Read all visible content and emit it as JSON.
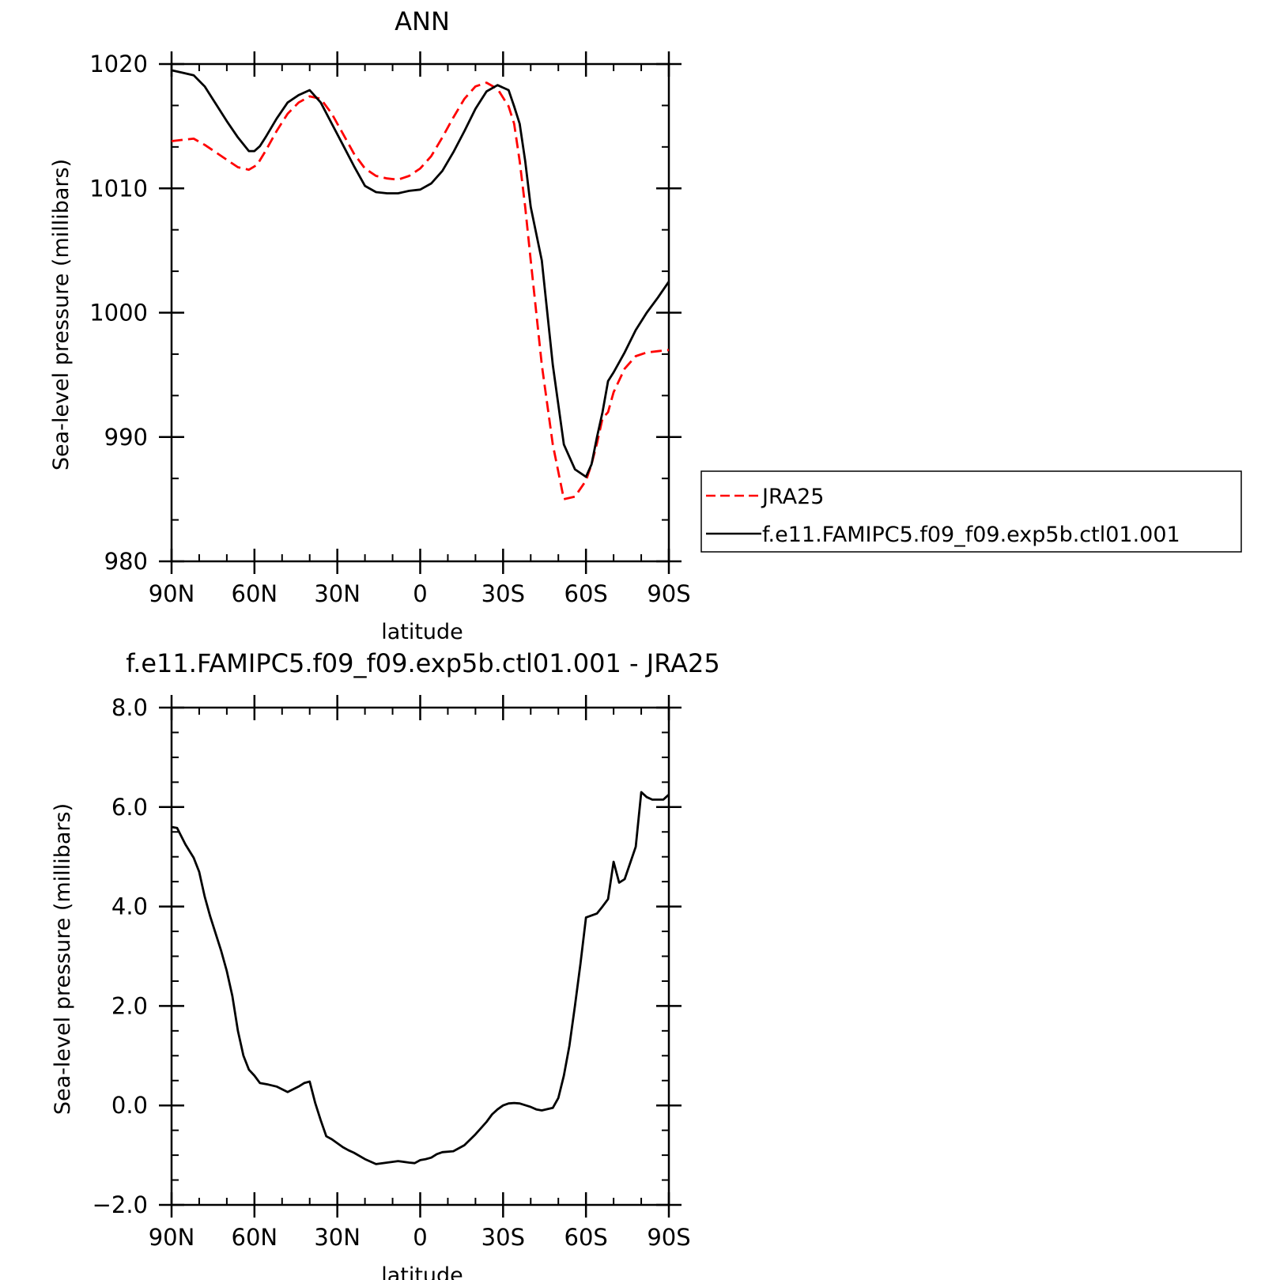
{
  "chart_data": [
    {
      "type": "line",
      "title": "ANN",
      "xlabel": "latitude",
      "ylabel": "Sea-level pressure (millibars)",
      "xlim": [
        90,
        -90
      ],
      "ylim": [
        980,
        1020
      ],
      "xtick_labels": [
        "90N",
        "60N",
        "30N",
        "0",
        "30S",
        "60S",
        "90S"
      ],
      "ytick_labels": [
        "980",
        "990",
        "1000",
        "1010",
        "1020"
      ],
      "legend": {
        "placement": "right",
        "entries": [
          "JRA25",
          "f.e11.FAMIPC5.f09_f09.exp5b.ctl01.001"
        ]
      },
      "series": [
        {
          "name": "JRA25",
          "style": "dashed",
          "color": "#ff0000",
          "x": [
            90,
            86,
            82,
            78,
            74,
            70,
            66,
            62,
            59,
            56,
            52,
            48,
            44,
            40,
            36,
            32,
            28,
            24,
            20,
            16,
            12,
            8,
            4,
            0,
            -4,
            -8,
            -12,
            -16,
            -20,
            -24,
            -28,
            -32,
            -34,
            -36,
            -38,
            -40,
            -44,
            -48,
            -52,
            -56,
            -60,
            -62,
            -64,
            -66,
            -68,
            -70,
            -74,
            -78,
            -82,
            -86,
            -90
          ],
          "y": [
            1013.8,
            1013.9,
            1014.0,
            1013.5,
            1012.9,
            1012.3,
            1011.7,
            1011.5,
            1011.9,
            1013.0,
            1014.6,
            1016.0,
            1016.9,
            1017.4,
            1017.2,
            1016.0,
            1014.4,
            1012.8,
            1011.6,
            1011.0,
            1010.8,
            1010.7,
            1011.0,
            1011.6,
            1012.6,
            1014.1,
            1015.7,
            1017.2,
            1018.2,
            1018.5,
            1018.0,
            1016.6,
            1015.2,
            1012.2,
            1008.5,
            1004.2,
            995.8,
            989.4,
            985.0,
            985.2,
            986.5,
            987.8,
            989.5,
            991.5,
            992.0,
            993.6,
            995.5,
            996.5,
            996.8,
            996.9,
            997.0
          ]
        },
        {
          "name": "f.e11.FAMIPC5.f09_f09.exp5b.ctl01.001",
          "style": "solid",
          "color": "#000000",
          "x": [
            90,
            86,
            82,
            78,
            74,
            70,
            66,
            62,
            60,
            58,
            56,
            52,
            48,
            44,
            40,
            36,
            32,
            28,
            24,
            20,
            16,
            12,
            8,
            4,
            0,
            -4,
            -8,
            -12,
            -16,
            -20,
            -24,
            -28,
            -32,
            -34,
            -36,
            -38,
            -40,
            -44,
            -48,
            -52,
            -56,
            -60,
            -62,
            -64,
            -66,
            -68,
            -70,
            -74,
            -78,
            -82,
            -86,
            -90
          ],
          "y": [
            1019.5,
            1019.3,
            1019.1,
            1018.2,
            1016.8,
            1015.4,
            1014.1,
            1013.0,
            1013.0,
            1013.4,
            1014.1,
            1015.6,
            1016.9,
            1017.5,
            1017.9,
            1016.9,
            1015.2,
            1013.5,
            1011.8,
            1010.2,
            1009.7,
            1009.6,
            1009.6,
            1009.8,
            1009.9,
            1010.4,
            1011.4,
            1012.9,
            1014.6,
            1016.4,
            1017.8,
            1018.3,
            1017.9,
            1016.6,
            1015.2,
            1012.2,
            1008.5,
            1004.2,
            995.8,
            989.4,
            987.4,
            986.8,
            987.8,
            990.0,
            992.0,
            994.5,
            995.2,
            996.8,
            998.6,
            1000.0,
            1001.2,
            1002.5
          ]
        }
      ]
    },
    {
      "type": "line",
      "title": "f.e11.FAMIPC5.f09_f09.exp5b.ctl01.001 - JRA25",
      "xlabel": "latitude",
      "ylabel": "Sea-level pressure (millibars)",
      "xlim": [
        90,
        -90
      ],
      "ylim": [
        -2.0,
        8.0
      ],
      "xtick_labels": [
        "90N",
        "60N",
        "30N",
        "0",
        "30S",
        "60S",
        "90S"
      ],
      "ytick_labels": [
        "-2.0",
        "0.0",
        "2.0",
        "4.0",
        "6.0",
        "8.0"
      ],
      "series": [
        {
          "style": "solid",
          "color": "#000000",
          "x": [
            90,
            88,
            85,
            82,
            80,
            78,
            76,
            74,
            72,
            70,
            68,
            66,
            64,
            62,
            60,
            58,
            55,
            52,
            48,
            44,
            42,
            40,
            38,
            36,
            34,
            32,
            28,
            26,
            24,
            20,
            16,
            12,
            8,
            4,
            2,
            0,
            -2,
            -4,
            -6,
            -8,
            -12,
            -16,
            -20,
            -24,
            -26,
            -28,
            -30,
            -32,
            -34,
            -36,
            -40,
            -42,
            -44,
            -48,
            -50,
            -52,
            -54,
            -56,
            -58,
            -60,
            -62,
            -64,
            -66,
            -68,
            -70,
            -72,
            -74,
            -78,
            -80,
            -82,
            -84,
            -86,
            -88,
            -89,
            -90
          ],
          "y": [
            5.6,
            5.58,
            5.25,
            4.98,
            4.7,
            4.2,
            3.8,
            3.45,
            3.1,
            2.7,
            2.2,
            1.5,
            1.0,
            0.72,
            0.6,
            0.45,
            0.42,
            0.38,
            0.27,
            0.38,
            0.45,
            0.48,
            0.05,
            -0.3,
            -0.62,
            -0.68,
            -0.84,
            -0.9,
            -0.95,
            -1.08,
            -1.18,
            -1.15,
            -1.12,
            -1.15,
            -1.16,
            -1.1,
            -1.08,
            -1.05,
            -0.98,
            -0.94,
            -0.92,
            -0.8,
            -0.58,
            -0.33,
            -0.18,
            -0.08,
            0.0,
            0.04,
            0.05,
            0.04,
            -0.03,
            -0.08,
            -0.1,
            -0.05,
            0.15,
            0.6,
            1.2,
            2.0,
            2.85,
            3.78,
            3.82,
            3.86,
            4.0,
            4.15,
            4.9,
            4.48,
            4.55,
            5.2,
            6.3,
            6.2,
            6.15,
            6.15,
            6.15,
            6.2,
            6.25
          ]
        }
      ]
    }
  ]
}
